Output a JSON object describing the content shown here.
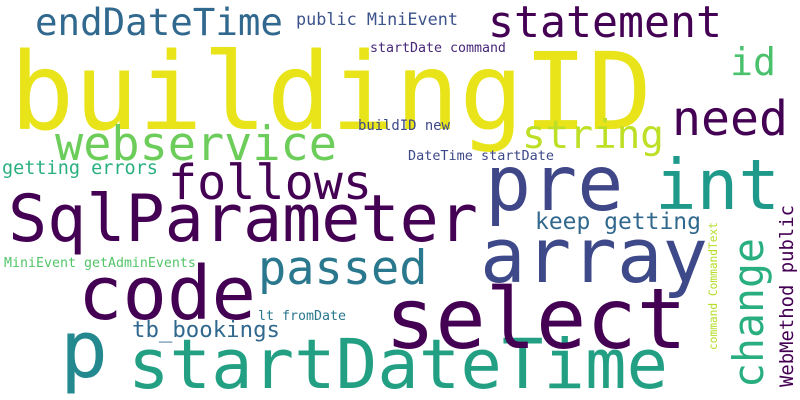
{
  "words": [
    {
      "text": "buildingID",
      "color": "#e8e419",
      "rotated": false
    },
    {
      "text": "startDateTime",
      "color": "#23a083",
      "rotated": false
    },
    {
      "text": "SqlParameter",
      "color": "#440154",
      "rotated": false
    },
    {
      "text": "code",
      "color": "#440154",
      "rotated": false
    },
    {
      "text": "select",
      "color": "#440154",
      "rotated": false
    },
    {
      "text": "array",
      "color": "#3e4989",
      "rotated": false
    },
    {
      "text": "pre",
      "color": "#3f4788",
      "rotated": false
    },
    {
      "text": "int",
      "color": "#1f9a8a",
      "rotated": false
    },
    {
      "text": "p",
      "color": "#23898e",
      "rotated": false
    },
    {
      "text": "statement",
      "color": "#440154",
      "rotated": false
    },
    {
      "text": "endDateTime",
      "color": "#31688e",
      "rotated": false
    },
    {
      "text": "follows",
      "color": "#440154",
      "rotated": false
    },
    {
      "text": "webservice",
      "color": "#6ccd5a",
      "rotated": false
    },
    {
      "text": "change",
      "color": "#29af7f",
      "rotated": true
    },
    {
      "text": "need",
      "color": "#440154",
      "rotated": false
    },
    {
      "text": "passed",
      "color": "#2a788e",
      "rotated": false
    },
    {
      "text": "string",
      "color": "#bddf26",
      "rotated": false
    },
    {
      "text": "id",
      "color": "#4ac16d",
      "rotated": false
    },
    {
      "text": "tb_bookings",
      "color": "#31688e",
      "rotated": false
    },
    {
      "text": "keep getting",
      "color": "#31688e",
      "rotated": false
    },
    {
      "text": "public MiniEvent",
      "color": "#3b528b",
      "rotated": false
    },
    {
      "text": "startDate command",
      "color": "#482878",
      "rotated": false
    },
    {
      "text": "buildID new",
      "color": "#3e4989",
      "rotated": false
    },
    {
      "text": "DateTime startDate",
      "color": "#3e4989",
      "rotated": false
    },
    {
      "text": "getting errors",
      "color": "#2ab07f",
      "rotated": false
    },
    {
      "text": "MiniEvent getAdminEvents",
      "color": "#52c569",
      "rotated": false
    },
    {
      "text": "lt fromDate",
      "color": "#2a788e",
      "rotated": false
    },
    {
      "text": "WebMethod public",
      "color": "#440154",
      "rotated": true
    },
    {
      "text": "command CommandText",
      "color": "#b5de2b",
      "rotated": true
    }
  ]
}
